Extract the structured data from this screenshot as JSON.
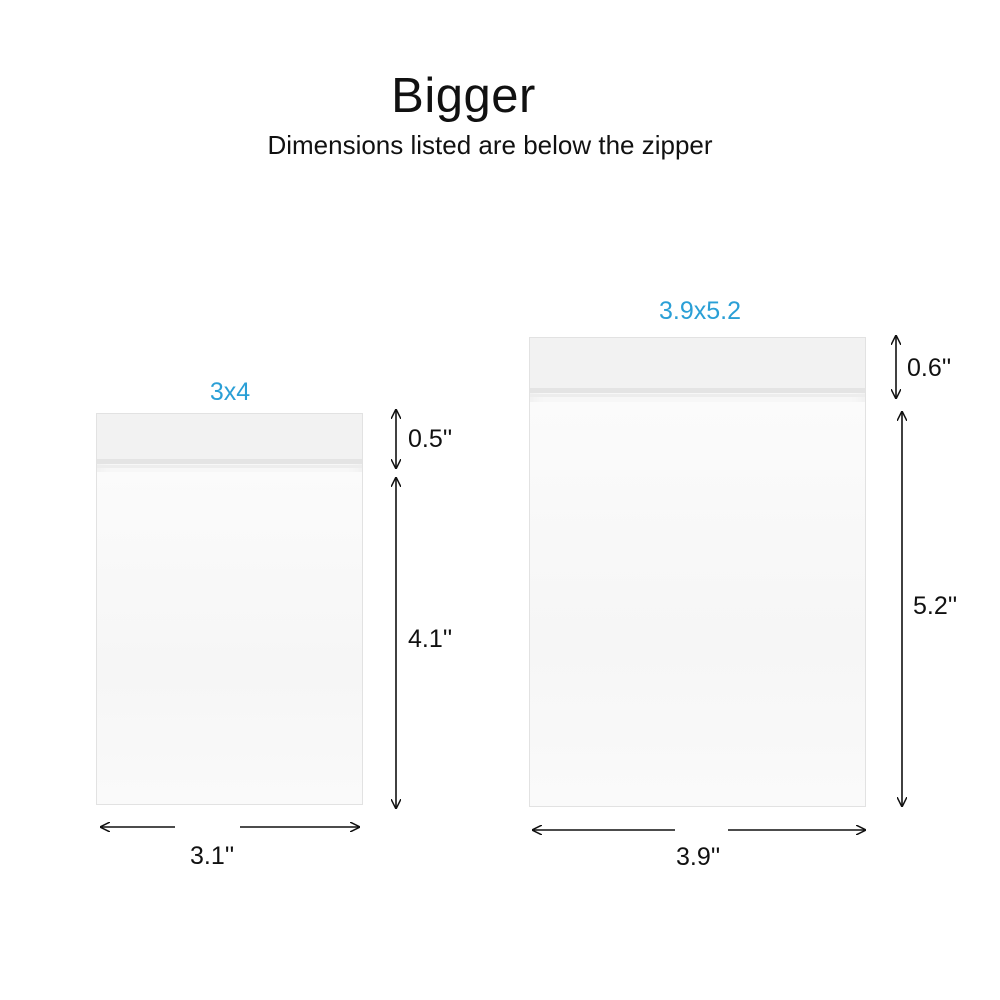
{
  "header": {
    "title": "Bigger",
    "subtitle": "Dimensions listed are below the zipper"
  },
  "bags": [
    {
      "size_label": "3x4",
      "zipper_height": "0.5''",
      "body_height": "4.1''",
      "width": "3.1''"
    },
    {
      "size_label": "3.9x5.2",
      "zipper_height": "0.6''",
      "body_height": "5.2''",
      "width": "3.9''"
    }
  ],
  "colors": {
    "size_label": "#2a9fd6",
    "text": "#111111",
    "bag": "#f7f7f7"
  }
}
